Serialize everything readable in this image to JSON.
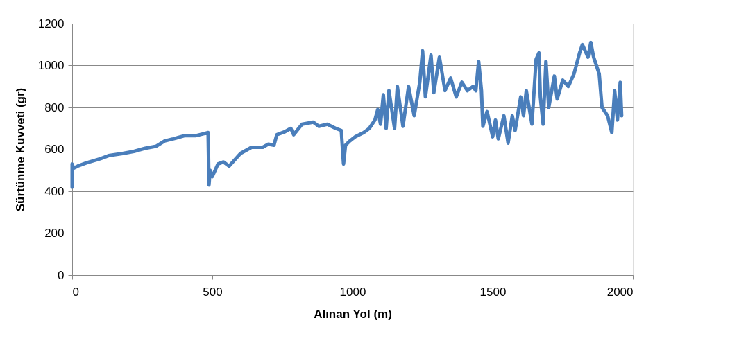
{
  "chart_data": {
    "type": "line",
    "xlabel": "Alınan Yol (m)",
    "ylabel": "Sürtünme Kuvveti (gr)",
    "xlim": [
      0,
      2000
    ],
    "xticks": [
      0,
      500,
      1000,
      1500,
      2000
    ],
    "ylim": [
      0,
      1200
    ],
    "yticks": [
      0,
      200,
      400,
      600,
      800,
      1000,
      1200
    ],
    "grid": "y",
    "marker": "none",
    "line_style": "solid",
    "series": [
      {
        "color": "#4a7ebb",
        "x": [
          0,
          0,
          5,
          20,
          50,
          100,
          130,
          180,
          220,
          260,
          300,
          330,
          360,
          400,
          440,
          470,
          485,
          488,
          492,
          500,
          520,
          540,
          560,
          600,
          640,
          680,
          700,
          720,
          730,
          760,
          780,
          790,
          820,
          860,
          880,
          910,
          940,
          960,
          968,
          975,
          990,
          1010,
          1040,
          1060,
          1080,
          1090,
          1100,
          1110,
          1120,
          1130,
          1150,
          1160,
          1180,
          1200,
          1220,
          1240,
          1250,
          1260,
          1280,
          1290,
          1310,
          1330,
          1350,
          1370,
          1390,
          1410,
          1430,
          1440,
          1450,
          1460,
          1465,
          1480,
          1500,
          1510,
          1520,
          1540,
          1555,
          1570,
          1580,
          1600,
          1610,
          1620,
          1640,
          1655,
          1665,
          1670,
          1680,
          1690,
          1700,
          1720,
          1730,
          1750,
          1770,
          1790,
          1810,
          1820,
          1840,
          1850,
          1860,
          1880,
          1890,
          1910,
          1925,
          1935,
          1945,
          1955,
          1960
        ],
        "values": [
          420,
          530,
          510,
          520,
          535,
          555,
          570,
          580,
          590,
          605,
          615,
          640,
          650,
          665,
          665,
          675,
          680,
          430,
          500,
          470,
          530,
          540,
          520,
          580,
          610,
          610,
          625,
          620,
          670,
          685,
          700,
          670,
          720,
          730,
          710,
          720,
          700,
          690,
          530,
          620,
          640,
          660,
          680,
          700,
          740,
          790,
          720,
          860,
          700,
          880,
          700,
          900,
          710,
          900,
          760,
          920,
          1070,
          850,
          1050,
          870,
          1040,
          880,
          940,
          850,
          920,
          880,
          900,
          880,
          1020,
          880,
          710,
          780,
          660,
          740,
          650,
          760,
          630,
          760,
          690,
          850,
          760,
          880,
          720,
          1030,
          1060,
          850,
          720,
          1020,
          800,
          950,
          840,
          930,
          900,
          960,
          1060,
          1100,
          1040,
          1110,
          1040,
          960,
          800,
          760,
          680,
          880,
          740,
          920,
          760
        ]
      }
    ]
  }
}
